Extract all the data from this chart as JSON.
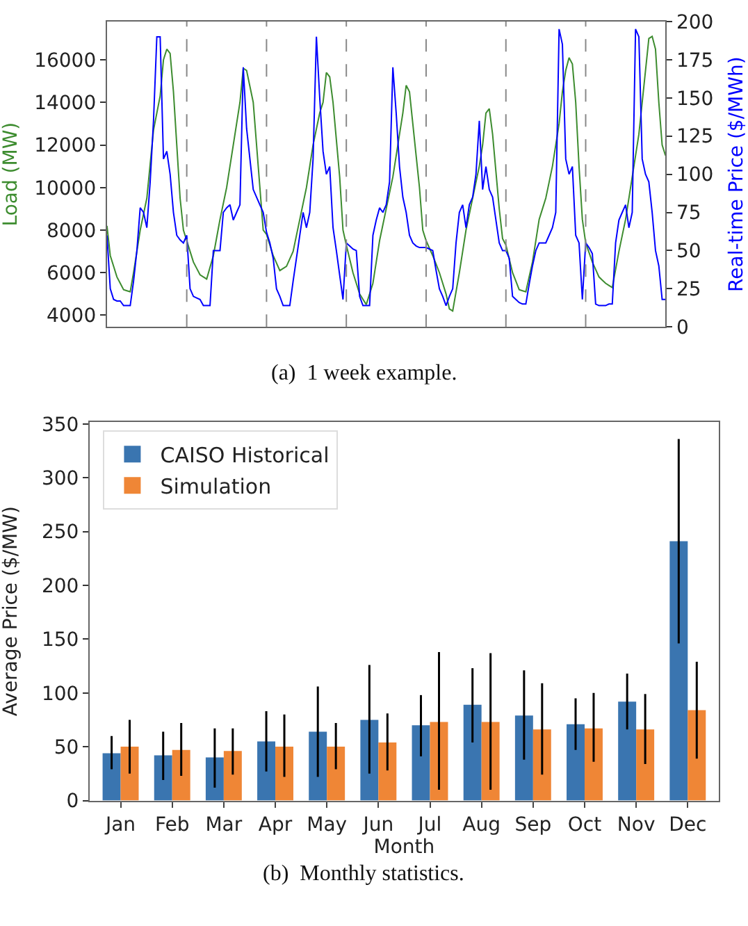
{
  "chart_data": [
    {
      "type": "line",
      "categories": [
        null,
        null,
        null,
        null,
        null,
        null,
        null,
        null,
        null,
        null,
        null,
        null,
        null,
        null,
        null,
        null,
        null,
        null,
        null,
        null,
        null,
        null,
        null,
        null,
        null,
        null,
        null,
        null,
        null,
        null,
        null,
        null,
        null,
        null,
        null,
        null,
        null,
        null,
        null,
        null,
        null,
        null,
        null,
        null,
        null,
        null,
        null,
        null,
        null,
        null,
        null,
        null,
        null,
        null,
        null,
        null,
        null,
        null,
        null,
        null,
        null,
        null,
        null,
        null,
        null,
        null,
        null,
        null,
        null,
        null,
        null,
        null,
        null,
        null,
        null,
        null,
        null,
        null,
        null,
        null,
        null,
        null,
        null,
        null,
        null,
        null,
        null,
        null,
        null,
        null,
        null,
        null,
        null,
        null,
        null,
        null,
        null,
        null,
        null,
        null,
        null,
        null,
        null,
        null,
        null,
        null,
        null,
        null,
        null,
        null,
        null,
        null,
        null,
        null,
        null,
        null,
        null,
        null,
        null,
        null,
        null,
        null,
        null,
        null,
        null,
        null,
        null,
        null,
        null,
        null,
        null,
        null,
        null,
        null,
        null,
        null,
        null,
        null,
        null,
        null,
        null,
        null,
        null,
        null,
        null,
        null,
        null,
        null,
        null,
        null,
        null,
        null,
        null,
        null,
        null,
        null,
        null,
        null,
        null,
        null,
        null,
        null,
        null,
        null,
        null,
        null,
        null,
        null,
        null
      ],
      "ylim": [
        3450,
        17800
      ],
      "yticks": [
        4000,
        6000,
        8000,
        10000,
        12000,
        14000,
        16000
      ],
      "y2lim": [
        0,
        200
      ],
      "y2ticks": [
        0,
        25,
        50,
        75,
        100,
        125,
        150,
        175,
        200
      ],
      "ylabel": "Load (MW)",
      "y2label": "Real-time Price ($/MWh)",
      "series": [
        {
          "color": "#3d8c2f",
          "values": [
            8200,
            6800,
            6300,
            5800,
            5500,
            5200,
            5150,
            5100,
            6000,
            7000,
            8000,
            8750,
            9500,
            11100,
            12700,
            13500,
            14300,
            16000,
            16500,
            16300,
            14500,
            12000,
            9500,
            8000,
            7500,
            7000,
            6500,
            6200,
            5900,
            5800,
            5700,
            6250,
            6800,
            7650,
            8500,
            9250,
            10000,
            11000,
            12000,
            13000,
            14000,
            15600,
            15500,
            14750,
            14000,
            12000,
            10000,
            8000,
            7800,
            7300,
            6800,
            6450,
            6100,
            6200,
            6300,
            6650,
            7000,
            7750,
            8500,
            9250,
            10000,
            11000,
            12000,
            12750,
            13500,
            14000,
            15400,
            15200,
            14000,
            12250,
            10500,
            8000,
            7300,
            6650,
            6000,
            5500,
            5000,
            4750,
            4500,
            5000,
            5500,
            6500,
            7500,
            8250,
            9000,
            9750,
            10500,
            11500,
            12500,
            13500,
            14800,
            14500,
            13000,
            11500,
            10000,
            8000,
            7500,
            7150,
            6800,
            6400,
            6000,
            5500,
            5000,
            4300,
            4200,
            5100,
            6000,
            7000,
            8000,
            8750,
            9500,
            10250,
            11000,
            12000,
            13500,
            13700,
            12500,
            10750,
            9000,
            7600,
            7300,
            6650,
            6000,
            5600,
            5200,
            5150,
            5100,
            5800,
            6500,
            7500,
            8500,
            9000,
            9500,
            10250,
            11000,
            12000,
            13000,
            14500,
            15500,
            16100,
            15800,
            14000,
            11000,
            8500,
            7400,
            6950,
            6500,
            6150,
            5800,
            5650,
            5500,
            5400,
            5300,
            6150,
            7000,
            7750,
            8500,
            9500,
            10500,
            11500,
            12500,
            14000,
            15500,
            17000,
            17100,
            16500,
            14000,
            12000,
            11500
          ]
        },
        {
          "color": "#0000ff",
          "axis": "y2",
          "values": [
            60,
            25,
            18,
            17,
            17,
            14,
            14,
            14,
            30,
            50,
            78,
            75,
            65,
            95,
            135,
            190,
            190,
            110,
            115,
            100,
            75,
            60,
            57,
            55,
            60,
            25,
            20,
            19,
            18,
            14,
            14,
            14,
            50,
            50,
            50,
            75,
            78,
            80,
            70,
            75,
            80,
            170,
            130,
            110,
            90,
            85,
            80,
            75,
            62,
            55,
            45,
            25,
            20,
            14,
            14,
            14,
            30,
            45,
            60,
            75,
            65,
            75,
            110,
            190,
            150,
            115,
            100,
            105,
            65,
            50,
            34,
            18,
            55,
            53,
            51,
            50,
            20,
            14,
            14,
            14,
            60,
            70,
            78,
            75,
            80,
            95,
            170,
            140,
            105,
            85,
            75,
            60,
            55,
            53,
            52,
            52,
            52,
            51,
            50,
            37,
            25,
            20,
            14,
            20,
            25,
            55,
            75,
            80,
            65,
            80,
            85,
            100,
            135,
            90,
            105,
            90,
            85,
            70,
            55,
            50,
            50,
            45,
            20,
            18,
            16,
            15,
            15,
            28,
            40,
            50,
            55,
            55,
            55,
            60,
            65,
            75,
            195,
            185,
            110,
            100,
            105,
            60,
            55,
            18,
            55,
            52,
            48,
            15,
            14,
            14,
            14,
            15,
            15,
            55,
            70,
            75,
            80,
            65,
            75,
            195,
            190,
            110,
            100,
            95,
            75,
            50,
            40,
            18,
            18
          ]
        }
      ],
      "annotations": [
        "(a)  1 week example."
      ]
    },
    {
      "type": "bar",
      "categories": [
        "Jan",
        "Feb",
        "Mar",
        "Apr",
        "May",
        "Jun",
        "Jul",
        "Aug",
        "Sep",
        "Oct",
        "Nov",
        "Dec"
      ],
      "ylim": [
        0,
        352
      ],
      "yticks": [
        0,
        50,
        100,
        150,
        200,
        250,
        300,
        350
      ],
      "xlabel": "Month",
      "ylabel": "Average Price ($/MW)",
      "legend": "top left",
      "series": [
        {
          "name": "CAISO Historical",
          "color": "#3a75b0",
          "values": [
            44,
            42,
            40,
            55,
            64,
            75,
            70,
            89,
            79,
            71,
            92,
            241
          ],
          "errors": [
            [
              29,
              60
            ],
            [
              19,
              64
            ],
            [
              12,
              67
            ],
            [
              27,
              83
            ],
            [
              22,
              106
            ],
            [
              25,
              126
            ],
            [
              41,
              98
            ],
            [
              54,
              123
            ],
            [
              38,
              121
            ],
            [
              47,
              95
            ],
            [
              66,
              118
            ],
            [
              146,
              336
            ]
          ]
        },
        {
          "name": "Simulation",
          "color": "#ef8636",
          "values": [
            50,
            47,
            46,
            50,
            50,
            54,
            73,
            73,
            66,
            67,
            66,
            84
          ],
          "errors": [
            [
              25,
              75
            ],
            [
              23,
              72
            ],
            [
              24,
              67
            ],
            [
              22,
              80
            ],
            [
              29,
              72
            ],
            [
              28,
              81
            ],
            [
              10,
              138
            ],
            [
              10,
              137
            ],
            [
              24,
              109
            ],
            [
              36,
              100
            ],
            [
              34,
              99
            ],
            [
              39,
              129
            ]
          ]
        }
      ],
      "annotations": [
        "(b)  Monthly statistics."
      ]
    }
  ]
}
